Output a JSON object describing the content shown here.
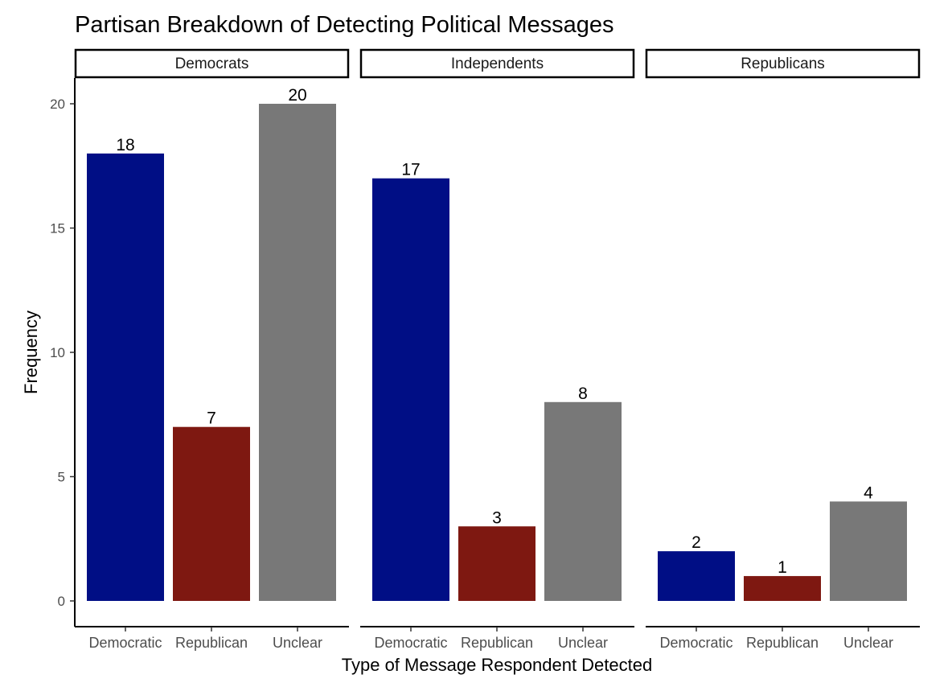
{
  "chart_data": {
    "type": "bar",
    "title": "Partisan Breakdown of Detecting Political Messages",
    "xlabel": "Type of Message Respondent Detected",
    "ylabel": "Frequency",
    "ylim": [
      0,
      20
    ],
    "yticks": [
      0,
      5,
      10,
      15,
      20
    ],
    "grid": false,
    "categories": [
      "Democratic",
      "Republican",
      "Unclear"
    ],
    "category_colors": [
      "#000e85",
      "#7e1811",
      "#787878"
    ],
    "facets": [
      {
        "label": "Democrats",
        "values": [
          18,
          7,
          20
        ]
      },
      {
        "label": "Independents",
        "values": [
          17,
          3,
          8
        ]
      },
      {
        "label": "Republicans",
        "values": [
          2,
          1,
          4
        ]
      }
    ]
  }
}
